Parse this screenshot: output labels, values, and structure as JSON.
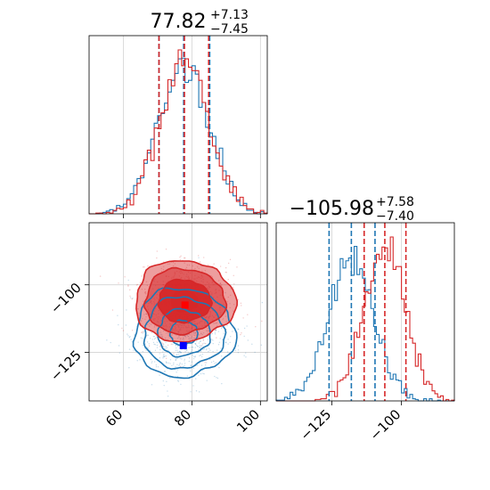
{
  "chart_data": {
    "type": "corner",
    "grid": true,
    "params": [
      {
        "title_main": "77.82",
        "title_plus": "+7.13",
        "title_minus": "−7.45",
        "xlim": [
          50,
          102
        ],
        "ticks": [
          60,
          80,
          100
        ],
        "tick_labels": [
          "60",
          "80",
          "100"
        ],
        "quantiles": {
          "red": [
            70.4,
            77.82,
            84.9
          ],
          "blue": [
            70.4,
            77.6,
            85.2
          ]
        }
      },
      {
        "title_main": "−105.98",
        "title_plus": "+7.58",
        "title_minus": "−7.40",
        "xlim": [
          -145,
          -81
        ],
        "ticks": [
          -125,
          -100
        ],
        "tick_labels": [
          "−125",
          "−100"
        ],
        "quantiles": {
          "red": [
            -113.4,
            -105.98,
            -98.4
          ],
          "blue": [
            -126.0,
            -118.0,
            -109.5
          ]
        }
      }
    ],
    "joint": {
      "xlim": [
        50,
        102
      ],
      "ylim": [
        -143,
        -77
      ],
      "xticks": [
        60,
        80,
        100
      ],
      "yticks": [
        -125,
        -100
      ],
      "ytick_labels": [
        "−125",
        "−100"
      ]
    },
    "series": [
      {
        "color": "#d62728",
        "mean": [
          77.8,
          -106.0
        ],
        "sigma": [
          7.3,
          7.5
        ],
        "marker": [
          78.0,
          -107.5
        ]
      },
      {
        "color": "#1f77b4",
        "mean": [
          77.6,
          -117.8
        ],
        "sigma": [
          7.3,
          8.2
        ],
        "marker": [
          77.5,
          -122.5
        ]
      }
    ]
  }
}
